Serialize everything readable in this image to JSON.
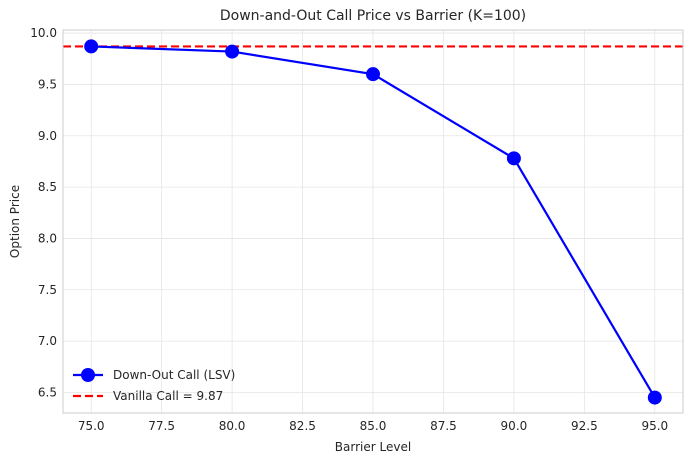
{
  "chart_data": {
    "type": "line",
    "title": "Down-and-Out Call Price vs Barrier (K=100)",
    "xlabel": "Barrier Level",
    "ylabel": "Option Price",
    "xlim": [
      74.0,
      96.0
    ],
    "ylim": [
      6.3,
      10.03
    ],
    "x_ticks": [
      75.0,
      77.5,
      80.0,
      82.5,
      85.0,
      87.5,
      90.0,
      92.5,
      95.0
    ],
    "x_tick_labels": [
      "75.0",
      "77.5",
      "80.0",
      "82.5",
      "85.0",
      "87.5",
      "90.0",
      "92.5",
      "95.0"
    ],
    "y_ticks": [
      6.5,
      7.0,
      7.5,
      8.0,
      8.5,
      9.0,
      9.5,
      10.0
    ],
    "y_tick_labels": [
      "6.5",
      "7.0",
      "7.5",
      "8.0",
      "8.5",
      "9.0",
      "9.5",
      "10.0"
    ],
    "grid": true,
    "legend_position": "lower-left",
    "series": [
      {
        "name": "Down-Out Call (LSV)",
        "x": [
          75,
          80,
          85,
          90,
          95
        ],
        "values": [
          9.87,
          9.82,
          9.6,
          8.78,
          6.45
        ],
        "color": "#0000ff",
        "style": "solid-with-markers"
      },
      {
        "name": "Vanilla Call = 9.87",
        "hline": 9.87,
        "color": "#ff0000",
        "style": "dashed"
      }
    ]
  }
}
